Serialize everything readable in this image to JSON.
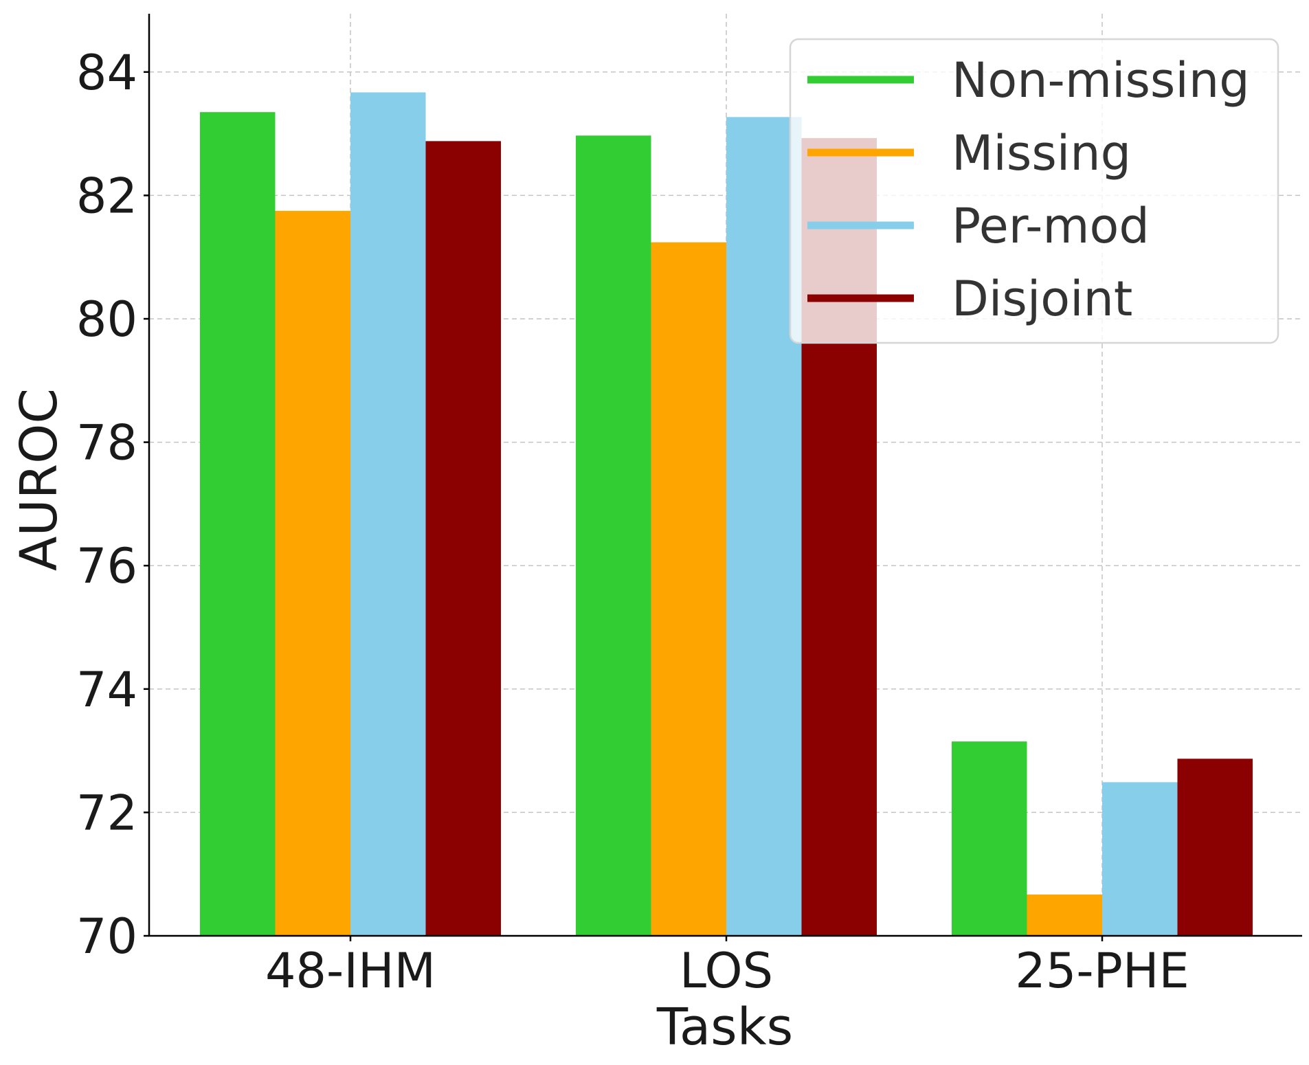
{
  "chart_data": {
    "type": "bar",
    "title": "",
    "xlabel": "Tasks",
    "ylabel": "AUROC",
    "categories": [
      "48-IHM",
      "LOS",
      "25-PHE"
    ],
    "series": [
      {
        "name": "Non-missing",
        "color": "#32cd32",
        "values": [
          83.35,
          82.97,
          73.15
        ]
      },
      {
        "name": "Missing",
        "color": "#ffa500",
        "values": [
          81.75,
          81.24,
          70.67
        ]
      },
      {
        "name": "Per-mod",
        "color": "#87ceeb",
        "values": [
          83.67,
          83.27,
          72.49
        ]
      },
      {
        "name": "Disjoint",
        "color": "#8b0000",
        "values": [
          82.88,
          82.93,
          72.87
        ]
      }
    ],
    "ylim": [
      70,
      85
    ],
    "yticks": [
      70,
      72,
      74,
      76,
      78,
      80,
      82,
      84
    ],
    "grid": true,
    "legend_position": "top-right"
  }
}
